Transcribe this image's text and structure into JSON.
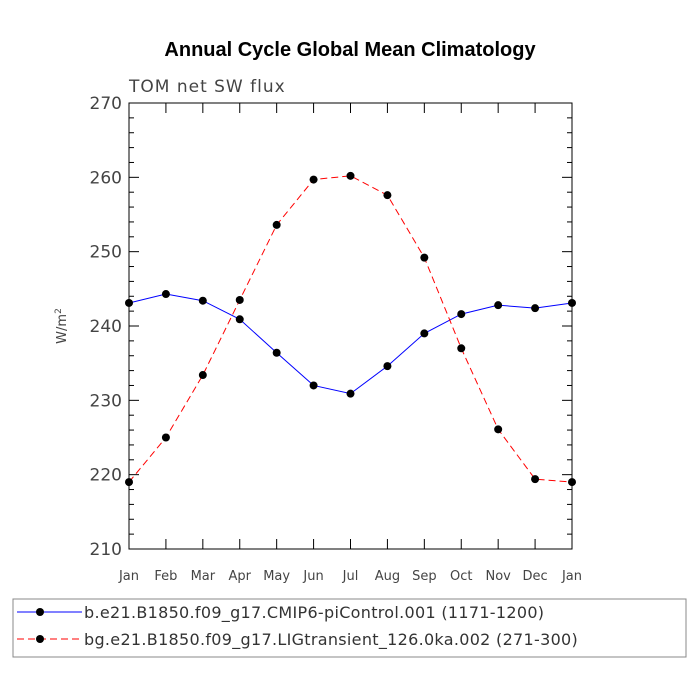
{
  "chart_data": {
    "type": "line",
    "title": "Annual Cycle Global Mean Climatology",
    "subtitle": "TOM  net  SW  flux",
    "ylabel": "W/m",
    "ylabel_superscript": "2",
    "xlabel": "",
    "ylim": [
      210,
      270
    ],
    "yticks": [
      210,
      220,
      230,
      240,
      250,
      260,
      270
    ],
    "categories": [
      "Jan",
      "Feb",
      "Mar",
      "Apr",
      "May",
      "Jun",
      "Jul",
      "Aug",
      "Sep",
      "Oct",
      "Nov",
      "Dec",
      "Jan"
    ],
    "series": [
      {
        "name": "b.e21.B1850.f09_g17.CMIP6-piControl.001 (1171-1200)",
        "color": "#0000ff",
        "dash": "solid",
        "values": [
          243.1,
          244.3,
          243.4,
          240.9,
          236.4,
          232.0,
          230.9,
          234.6,
          239.0,
          241.6,
          242.8,
          242.4,
          243.1
        ]
      },
      {
        "name": "bg.e21.B1850.f09_g17.LIGtransient_126.0ka.002 (271-300)",
        "color": "#ff0000",
        "dash": "dashed",
        "values": [
          219.0,
          225.0,
          233.4,
          243.5,
          253.6,
          259.7,
          260.2,
          257.6,
          249.2,
          237.0,
          226.1,
          219.4,
          219.0
        ]
      }
    ]
  }
}
